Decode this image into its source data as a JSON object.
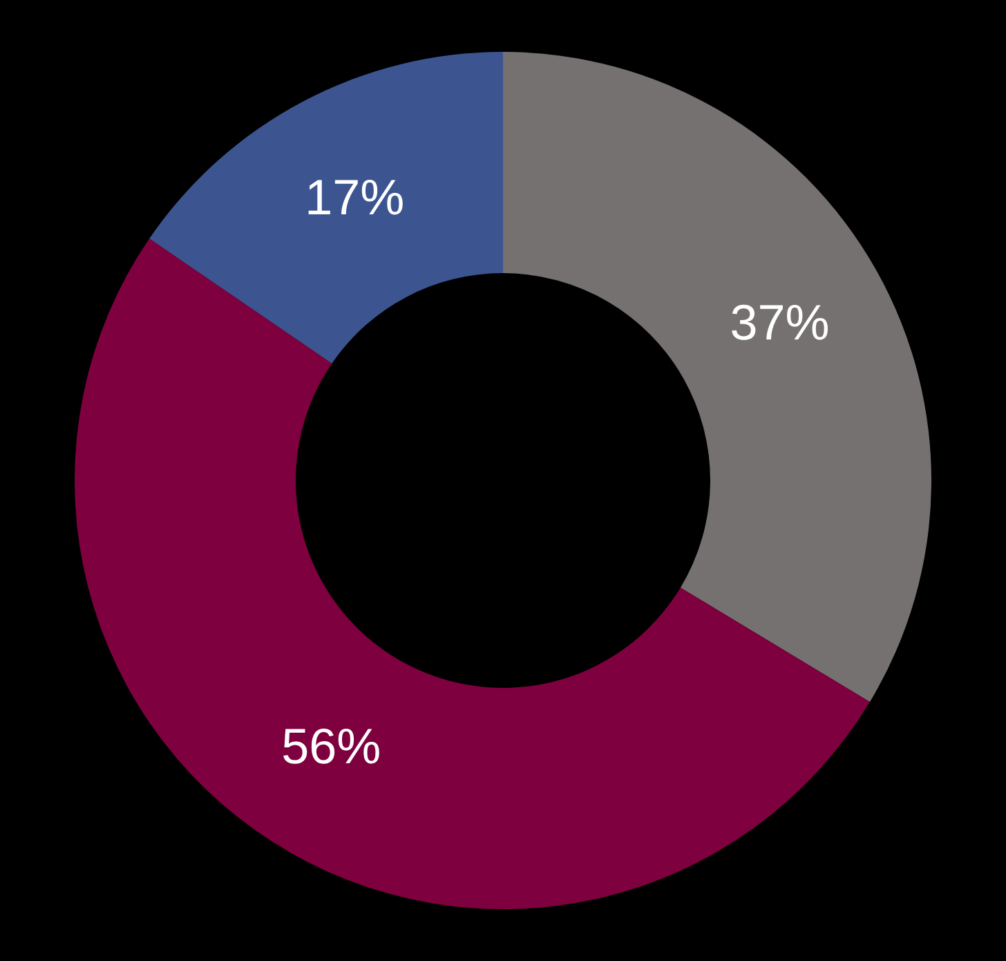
{
  "chart_data": {
    "type": "donut",
    "categories": [
      null,
      null,
      null
    ],
    "values": [
      37,
      56,
      17
    ],
    "colors": [
      "#767171",
      "#7f003f",
      "#3c5590"
    ],
    "value_labels": [
      "37%",
      "56%",
      "17%"
    ]
  }
}
